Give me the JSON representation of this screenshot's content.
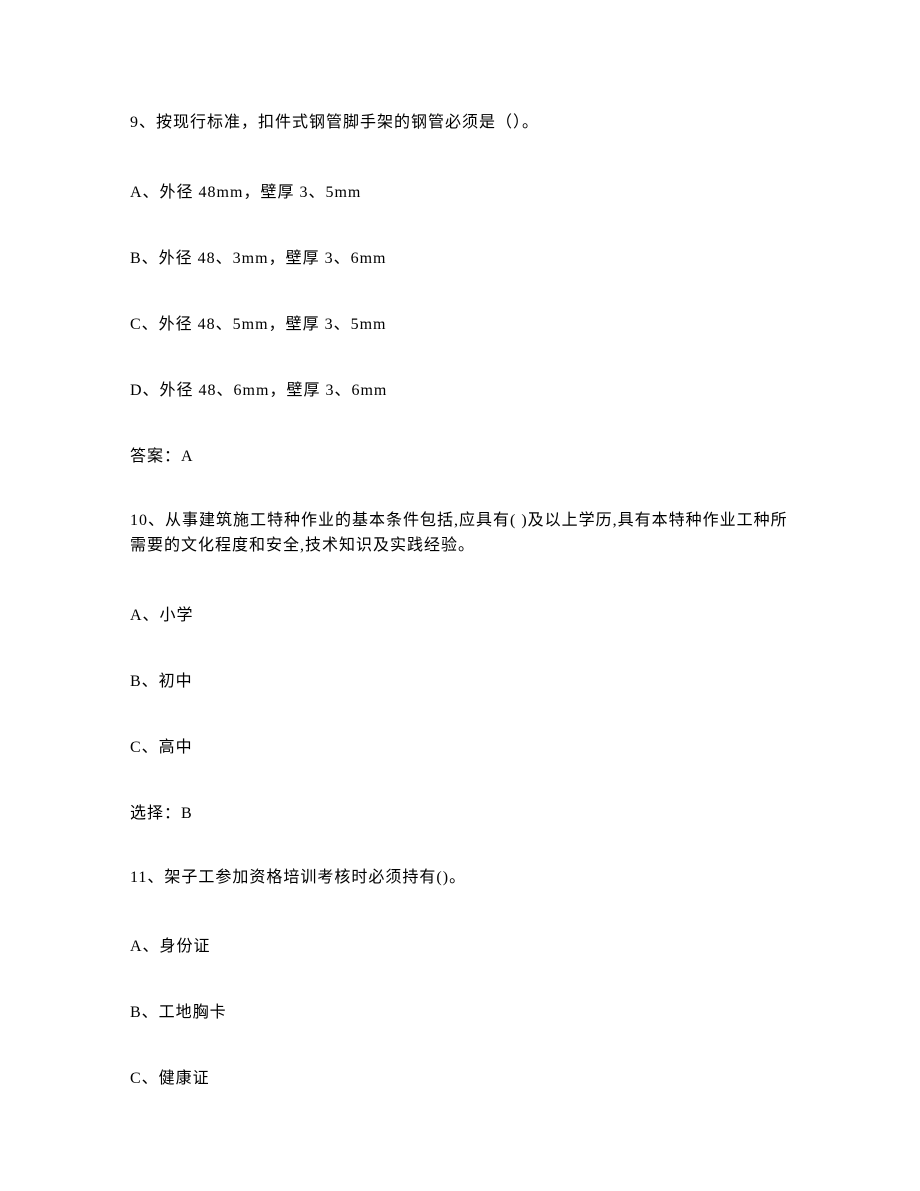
{
  "questions": [
    {
      "number": "9、",
      "text": "按现行标准，扣件式钢管脚手架的钢管必须是（）。",
      "options": [
        "A、外径 48mm，壁厚 3、5mm",
        "B、外径 48、3mm，壁厚 3、6mm",
        "C、外径 48、5mm，壁厚 3、5mm",
        "D、外径 48、6mm，壁厚 3、6mm"
      ],
      "answer_label": "答案：A"
    },
    {
      "number": "10、",
      "text": "从事建筑施工特种作业的基本条件包括,应具有( )及以上学历,具有本特种作业工种所需要的文化程度和安全,技术知识及实践经验。",
      "options": [
        "A、小学",
        "B、初中",
        "C、高中"
      ],
      "answer_label": "选择：B"
    },
    {
      "number": "11、",
      "text": "架子工参加资格培训考核时必须持有()。",
      "options": [
        "A、身份证",
        "B、工地胸卡",
        "C、健康证"
      ],
      "answer_label": ""
    }
  ]
}
